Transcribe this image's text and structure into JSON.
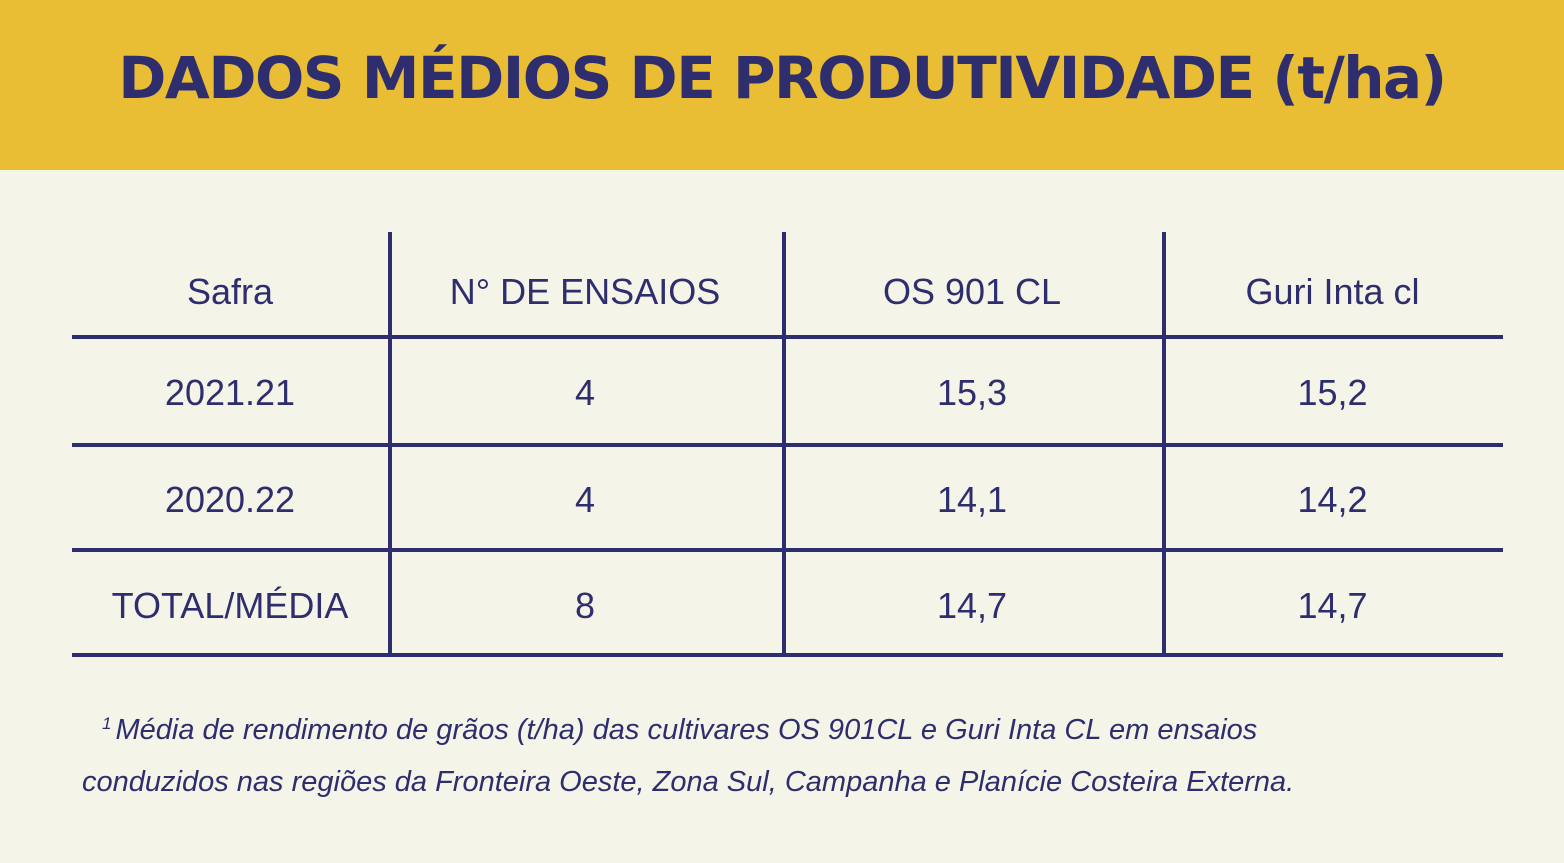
{
  "title": "DADOS MÉDIOS DE PRODUTIVIDADE (t/ha)",
  "chart_data": {
    "type": "table",
    "columns": [
      "Safra",
      "N° DE ENSAIOS",
      "OS 901 CL",
      "Guri Inta cl"
    ],
    "rows": [
      [
        "2021.21",
        "4",
        "15,3",
        "15,2"
      ],
      [
        "2020.22",
        "4",
        "14,1",
        "14,2"
      ],
      [
        "TOTAL/MÉDIA",
        "8",
        "14,7",
        "14,7"
      ]
    ]
  },
  "footnote": {
    "marker": "1",
    "line1": "Média de rendimento de grãos (t/ha) das cultivares OS 901CL e Guri Inta CL em ensaios",
    "line2": "conduzidos nas regiões da Fronteira Oeste, Zona Sul, Campanha e Planície Costeira Externa."
  },
  "colors": {
    "banner": "#e9bd34",
    "background": "#f4f4e8",
    "text": "#2e2e6e"
  }
}
